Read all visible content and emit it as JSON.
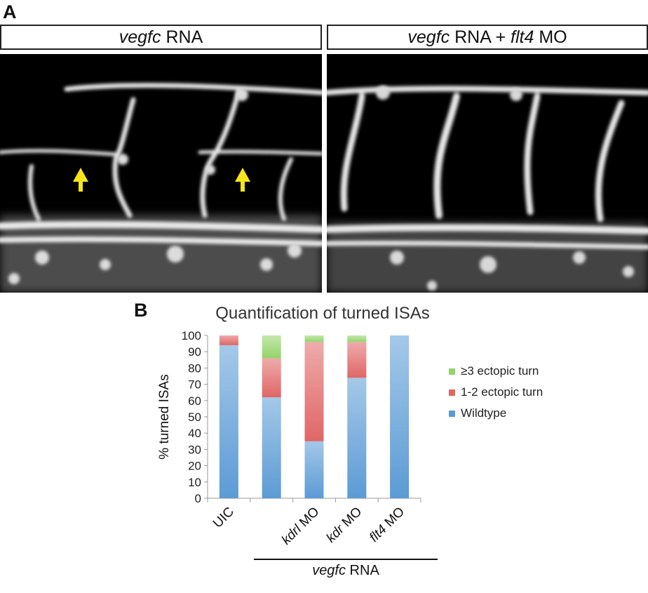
{
  "figure": {
    "panel_a": "A",
    "panel_b": "B",
    "left_title": {
      "gene": "vegfc",
      "rest": " RNA"
    },
    "right_title": {
      "gene": "vegfc",
      "middle": " RNA + ",
      "mo": "flt4",
      "rest": " MO"
    },
    "group_label": {
      "gene": "vegfc",
      "rest": " RNA"
    },
    "arrow_color": "#f5e51a"
  },
  "chart_data": {
    "type": "bar",
    "stacked": true,
    "title": "Quantification of turned ISAs",
    "ylabel": "% turned ISAs",
    "xlabel": "",
    "ylim": [
      0,
      100
    ],
    "yticks": [
      0,
      10,
      20,
      30,
      40,
      50,
      60,
      70,
      80,
      90,
      100
    ],
    "categories": [
      {
        "label": "UIC",
        "italic": "",
        "rest": "UIC"
      },
      {
        "label": "",
        "italic": "",
        "rest": ""
      },
      {
        "label": "kdrl MO",
        "italic": "kdrl",
        "rest": " MO"
      },
      {
        "label": "kdr MO",
        "italic": "kdr",
        "rest": " MO"
      },
      {
        "label": "flt4 MO",
        "italic": "flt4",
        "rest": " MO"
      }
    ],
    "series": [
      {
        "name": "Wildtype",
        "color": "#5b9bd5",
        "values": [
          94,
          62,
          35,
          74,
          100
        ]
      },
      {
        "name": "1-2 ectopic turn",
        "color": "#e06666",
        "values": [
          6,
          24,
          61,
          22,
          0
        ]
      },
      {
        "name": "≥3 ectopic turn",
        "color": "#93d46a",
        "values": [
          0,
          14,
          4,
          4,
          0
        ]
      }
    ],
    "legend_order": [
      "≥3 ectopic turn",
      "1-2 ectopic turn",
      "Wildtype"
    ],
    "legend_position": "right",
    "grid": false
  }
}
